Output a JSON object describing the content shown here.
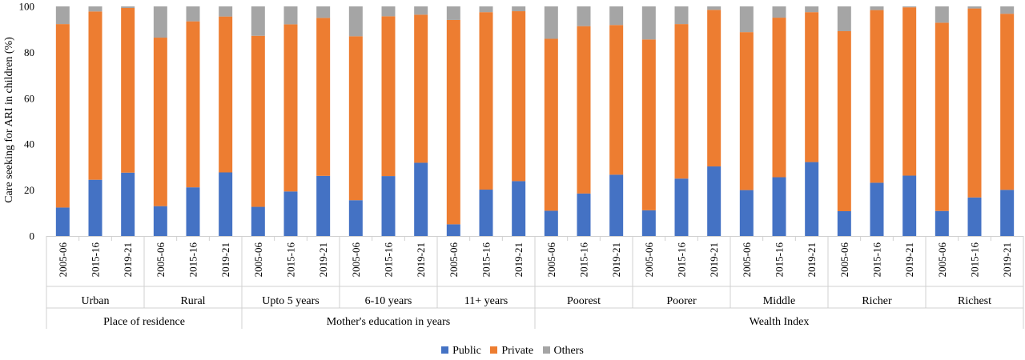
{
  "chart_data": {
    "type": "bar",
    "stacked": true,
    "title": "",
    "xlabel": "",
    "ylabel": "Care seeking for ARI in children (%)",
    "ylim": [
      0,
      100
    ],
    "yticks": [
      "0",
      "20",
      "40",
      "60",
      "80",
      "100"
    ],
    "grid": false,
    "legend_position": "bottom",
    "colors": {
      "Public": "#4472c4",
      "Private": "#ed7d31",
      "Others": "#a5a5a5"
    },
    "categories": [
      "2005-06",
      "2015-16",
      "2019-21",
      "2005-06",
      "2015-16",
      "2019-21",
      "2005-06",
      "2015-16",
      "2019-21",
      "2005-06",
      "2015-16",
      "2019-21",
      "2005-06",
      "2015-16",
      "2019-21",
      "2005-06",
      "2015-16",
      "2019-21",
      "2005-06",
      "2015-16",
      "2019-21",
      "2005-06",
      "2015-16",
      "2019-21",
      "2005-06",
      "2015-16",
      "2019-21",
      "2005-06",
      "2015-16",
      "2019-21"
    ],
    "subgroups": [
      "Urban",
      "Rural",
      "Upto 5 years",
      "6-10 years",
      "11+ years",
      "Poorest",
      "Poorer",
      "Middle",
      "Richer",
      "Richest"
    ],
    "groups": [
      {
        "label": "Place of residence",
        "subgroup_count": 2
      },
      {
        "label": "Mother's education in years",
        "subgroup_count": 3
      },
      {
        "label": "Wealth Index",
        "subgroup_count": 5
      }
    ],
    "series": [
      {
        "name": "Public",
        "values": [
          12.4,
          24.5,
          27.6,
          13.0,
          21.2,
          27.7,
          12.7,
          19.4,
          26.2,
          15.6,
          26.1,
          31.9,
          5.1,
          20.2,
          23.9,
          11.0,
          18.5,
          26.7,
          11.2,
          25.0,
          30.3,
          20.0,
          25.6,
          32.2,
          10.8,
          23.2,
          26.3,
          10.9,
          16.8,
          20.1
        ]
      },
      {
        "name": "Private",
        "values": [
          79.9,
          73.3,
          71.7,
          73.4,
          72.3,
          67.9,
          74.5,
          72.8,
          68.8,
          71.4,
          69.6,
          64.5,
          89.0,
          77.3,
          74.0,
          74.9,
          72.9,
          65.2,
          74.4,
          67.3,
          68.2,
          68.8,
          69.5,
          65.3,
          78.4,
          75.2,
          73.3,
          82.0,
          82.3,
          76.7
        ]
      },
      {
        "name": "Others",
        "values": [
          7.7,
          2.2,
          0.7,
          13.6,
          6.5,
          4.4,
          12.8,
          7.8,
          5.0,
          13.0,
          4.3,
          3.6,
          5.9,
          2.5,
          2.1,
          14.1,
          8.6,
          8.1,
          14.4,
          7.7,
          1.5,
          11.2,
          4.9,
          2.5,
          10.8,
          1.6,
          0.4,
          7.1,
          0.9,
          3.2
        ]
      }
    ]
  }
}
